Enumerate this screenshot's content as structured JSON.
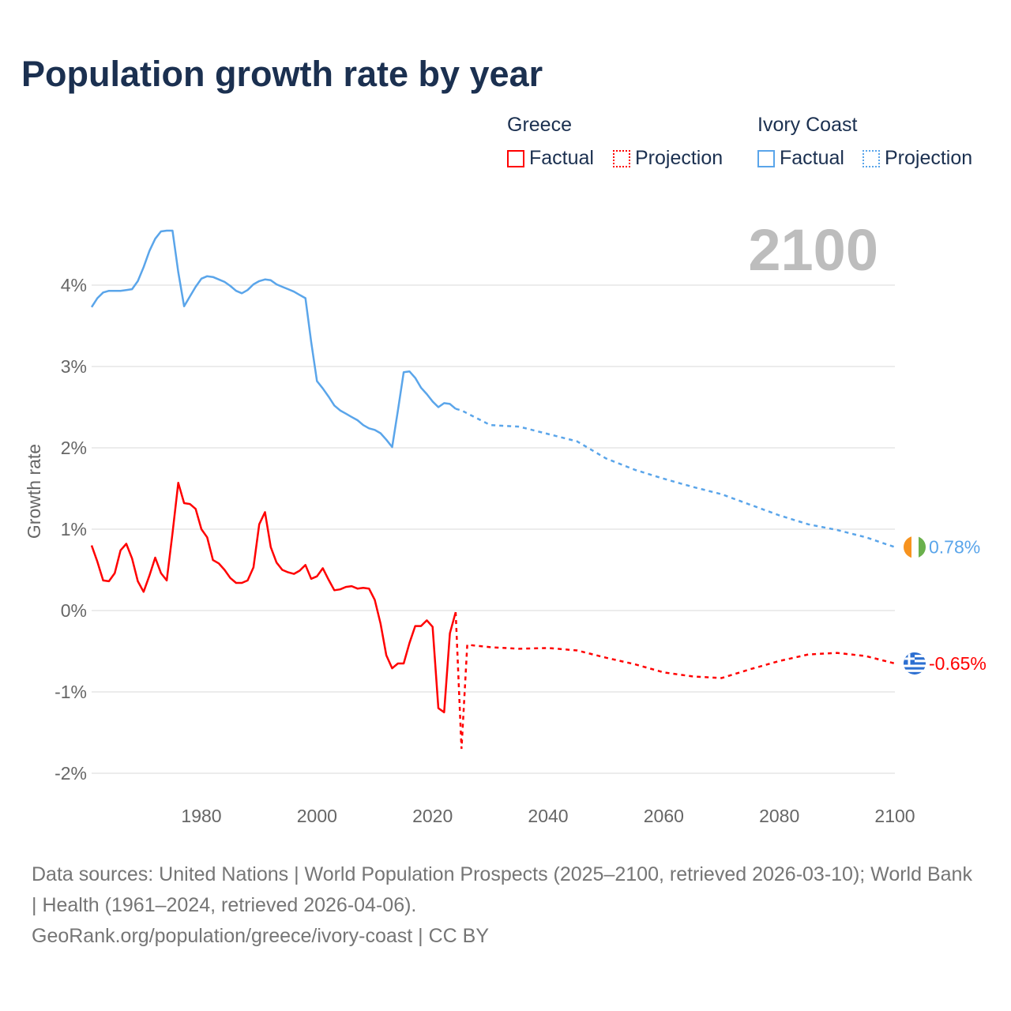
{
  "title": "Population growth rate by year",
  "legend": {
    "groups": [
      {
        "name": "Greece",
        "color": "#ff0000",
        "factual": "Factual",
        "projection": "Projection"
      },
      {
        "name": "Ivory Coast",
        "color": "#5aa5ea",
        "factual": "Factual",
        "projection": "Projection"
      }
    ]
  },
  "year_label": "2100",
  "footer": {
    "sources": "Data sources: United Nations | World Population Prospects (2025–2100, retrieved 2026-03-10); World Bank | Health (1961–2024, retrieved 2026-04-06).",
    "site": "GeoRank.org/population/greece/ivory-coast | CC BY"
  },
  "chart_data": {
    "type": "line",
    "title": "Population growth rate by year",
    "xlabel": "",
    "ylabel": "Growth rate",
    "xlim": [
      1961,
      2100
    ],
    "ylim": [
      -2.2,
      4.8
    ],
    "x_ticks": [
      1980,
      2000,
      2020,
      2040,
      2060,
      2080,
      2100
    ],
    "y_ticks": [
      {
        "v": -2,
        "label": "-2%"
      },
      {
        "v": -1,
        "label": "-1%"
      },
      {
        "v": 0,
        "label": "0%"
      },
      {
        "v": 1,
        "label": "1%"
      },
      {
        "v": 2,
        "label": "2%"
      },
      {
        "v": 3,
        "label": "3%"
      },
      {
        "v": 4,
        "label": "4%"
      }
    ],
    "grid": true,
    "legend_position": "top-right",
    "series": [
      {
        "name": "Ivory Coast",
        "color": "#5aa5ea",
        "end_label": "0.78%",
        "factual_start": 1961,
        "factual": [
          3.73,
          3.84,
          3.91,
          3.93,
          3.93,
          3.93,
          3.94,
          3.95,
          4.05,
          4.22,
          4.42,
          4.57,
          4.66,
          4.67,
          4.67,
          4.16,
          3.74,
          3.86,
          3.98,
          4.08,
          4.11,
          4.1,
          4.07,
          4.04,
          3.99,
          3.93,
          3.9,
          3.94,
          4.01,
          4.05,
          4.07,
          4.06,
          4.01,
          3.98,
          3.95,
          3.92,
          3.88,
          3.84,
          3.3,
          2.82,
          2.73,
          2.63,
          2.52,
          2.46,
          2.42,
          2.38,
          2.34,
          2.28,
          2.24,
          2.22,
          2.18,
          2.1,
          2.01,
          2.46,
          2.93,
          2.94,
          2.86,
          2.74,
          2.66,
          2.57,
          2.5,
          2.55,
          2.54,
          2.48
        ],
        "projection": [
          [
            2024,
            2.48
          ],
          [
            2025,
            2.46
          ],
          [
            2030,
            2.28
          ],
          [
            2035,
            2.26
          ],
          [
            2040,
            2.17
          ],
          [
            2045,
            2.08
          ],
          [
            2050,
            1.87
          ],
          [
            2055,
            1.73
          ],
          [
            2060,
            1.62
          ],
          [
            2065,
            1.52
          ],
          [
            2070,
            1.43
          ],
          [
            2075,
            1.3
          ],
          [
            2080,
            1.17
          ],
          [
            2085,
            1.06
          ],
          [
            2090,
            0.99
          ],
          [
            2095,
            0.9
          ],
          [
            2100,
            0.78
          ]
        ]
      },
      {
        "name": "Greece",
        "color": "#ff0000",
        "end_label": "-0.65%",
        "factual_start": 1961,
        "factual": [
          0.8,
          0.6,
          0.37,
          0.36,
          0.46,
          0.74,
          0.82,
          0.64,
          0.36,
          0.23,
          0.43,
          0.65,
          0.46,
          0.37,
          0.95,
          1.57,
          1.32,
          1.31,
          1.25,
          1.0,
          0.9,
          0.62,
          0.58,
          0.5,
          0.4,
          0.34,
          0.34,
          0.37,
          0.53,
          1.06,
          1.21,
          0.78,
          0.59,
          0.5,
          0.47,
          0.45,
          0.49,
          0.56,
          0.39,
          0.42,
          0.52,
          0.38,
          0.25,
          0.26,
          0.29,
          0.3,
          0.27,
          0.28,
          0.27,
          0.13,
          -0.16,
          -0.55,
          -0.71,
          -0.65,
          -0.65,
          -0.4,
          -0.19,
          -0.19,
          -0.12,
          -0.2,
          -1.2,
          -1.25,
          -0.28,
          -0.02
        ],
        "projection": [
          [
            2024,
            -0.02
          ],
          [
            2025,
            -1.7
          ],
          [
            2026,
            -0.42
          ],
          [
            2030,
            -0.45
          ],
          [
            2035,
            -0.47
          ],
          [
            2040,
            -0.46
          ],
          [
            2045,
            -0.49
          ],
          [
            2050,
            -0.58
          ],
          [
            2055,
            -0.66
          ],
          [
            2060,
            -0.76
          ],
          [
            2065,
            -0.81
          ],
          [
            2070,
            -0.83
          ],
          [
            2075,
            -0.72
          ],
          [
            2080,
            -0.62
          ],
          [
            2085,
            -0.54
          ],
          [
            2090,
            -0.52
          ],
          [
            2095,
            -0.56
          ],
          [
            2100,
            -0.65
          ]
        ]
      }
    ]
  }
}
